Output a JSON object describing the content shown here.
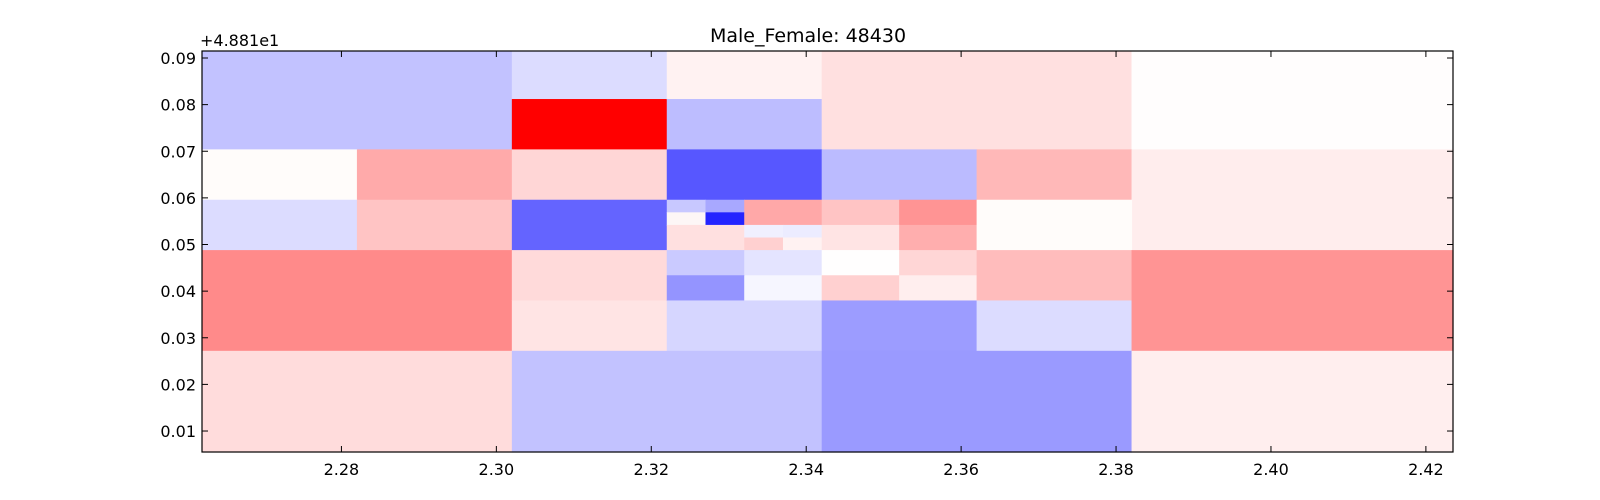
{
  "chart_data": {
    "type": "heatmap",
    "title": "Male_Female: 48430",
    "xlabel": "",
    "ylabel": "",
    "y_offset_label": "+4.881e1",
    "xlim": [
      2.262,
      2.4235
    ],
    "ylim": [
      0.0055,
      0.0915
    ],
    "x_ticks": [
      2.28,
      2.3,
      2.32,
      2.34,
      2.36,
      2.38,
      2.4,
      2.42
    ],
    "x_tick_labels": [
      "2.28",
      "2.30",
      "2.32",
      "2.34",
      "2.36",
      "2.38",
      "2.40",
      "2.42"
    ],
    "y_ticks": [
      0.01,
      0.02,
      0.03,
      0.04,
      0.05,
      0.06,
      0.07,
      0.08,
      0.09
    ],
    "y_tick_labels": [
      "0.01",
      "0.02",
      "0.03",
      "0.04",
      "0.05",
      "0.06",
      "0.07",
      "0.08",
      "0.09"
    ],
    "colormap": "bwr",
    "cells": [
      {
        "x0": 2.262,
        "x1": 2.302,
        "y0": 0.0704,
        "y1": 0.0915,
        "color": "#c2c2ff"
      },
      {
        "x0": 2.302,
        "x1": 2.322,
        "y0": 0.0812,
        "y1": 0.0915,
        "color": "#dcdcff"
      },
      {
        "x0": 2.302,
        "x1": 2.322,
        "y0": 0.0704,
        "y1": 0.0812,
        "color": "#ff0000"
      },
      {
        "x0": 2.322,
        "x1": 2.342,
        "y0": 0.0812,
        "y1": 0.0915,
        "color": "#fff2f2"
      },
      {
        "x0": 2.322,
        "x1": 2.342,
        "y0": 0.0704,
        "y1": 0.0812,
        "color": "#bdbdff"
      },
      {
        "x0": 2.342,
        "x1": 2.382,
        "y0": 0.0704,
        "y1": 0.0915,
        "color": "#ffe0e0"
      },
      {
        "x0": 2.382,
        "x1": 2.4235,
        "y0": 0.0704,
        "y1": 0.0915,
        "color": "#fffdfd"
      },
      {
        "x0": 2.262,
        "x1": 2.282,
        "y0": 0.0596,
        "y1": 0.0704,
        "color": "#fffcfa"
      },
      {
        "x0": 2.282,
        "x1": 2.302,
        "y0": 0.0596,
        "y1": 0.0704,
        "color": "#ffaaaa"
      },
      {
        "x0": 2.302,
        "x1": 2.322,
        "y0": 0.0596,
        "y1": 0.0704,
        "color": "#ffd6d6"
      },
      {
        "x0": 2.322,
        "x1": 2.342,
        "y0": 0.0596,
        "y1": 0.0704,
        "color": "#5757ff"
      },
      {
        "x0": 2.342,
        "x1": 2.362,
        "y0": 0.0596,
        "y1": 0.0704,
        "color": "#bbbbff"
      },
      {
        "x0": 2.362,
        "x1": 2.382,
        "y0": 0.0596,
        "y1": 0.0704,
        "color": "#ffb8b8"
      },
      {
        "x0": 2.382,
        "x1": 2.4235,
        "y0": 0.0488,
        "y1": 0.0704,
        "color": "#ffeded"
      },
      {
        "x0": 2.262,
        "x1": 2.282,
        "y0": 0.0488,
        "y1": 0.0596,
        "color": "#dcdcff"
      },
      {
        "x0": 2.282,
        "x1": 2.302,
        "y0": 0.0488,
        "y1": 0.0596,
        "color": "#ffc4c4"
      },
      {
        "x0": 2.302,
        "x1": 2.322,
        "y0": 0.0488,
        "y1": 0.0596,
        "color": "#6464ff"
      },
      {
        "x0": 2.322,
        "x1": 2.327,
        "y0": 0.0569,
        "y1": 0.0596,
        "color": "#c8c8ff"
      },
      {
        "x0": 2.327,
        "x1": 2.332,
        "y0": 0.0569,
        "y1": 0.0596,
        "color": "#a8a8ff"
      },
      {
        "x0": 2.322,
        "x1": 2.327,
        "y0": 0.0542,
        "y1": 0.0569,
        "color": "#fdf6f6"
      },
      {
        "x0": 2.327,
        "x1": 2.332,
        "y0": 0.0542,
        "y1": 0.0569,
        "color": "#2424ff"
      },
      {
        "x0": 2.332,
        "x1": 2.342,
        "y0": 0.0542,
        "y1": 0.0596,
        "color": "#ffa8a8"
      },
      {
        "x0": 2.322,
        "x1": 2.332,
        "y0": 0.0488,
        "y1": 0.0542,
        "color": "#ffe0e0"
      },
      {
        "x0": 2.332,
        "x1": 2.337,
        "y0": 0.0515,
        "y1": 0.0542,
        "color": "#f0f0ff"
      },
      {
        "x0": 2.337,
        "x1": 2.342,
        "y0": 0.0515,
        "y1": 0.0542,
        "color": "#ececff"
      },
      {
        "x0": 2.332,
        "x1": 2.337,
        "y0": 0.0488,
        "y1": 0.0515,
        "color": "#ffd0d0"
      },
      {
        "x0": 2.337,
        "x1": 2.342,
        "y0": 0.0488,
        "y1": 0.0515,
        "color": "#fff2f2"
      },
      {
        "x0": 2.342,
        "x1": 2.352,
        "y0": 0.0542,
        "y1": 0.0596,
        "color": "#ffc4c4"
      },
      {
        "x0": 2.352,
        "x1": 2.362,
        "y0": 0.0542,
        "y1": 0.0596,
        "color": "#ff9494"
      },
      {
        "x0": 2.342,
        "x1": 2.352,
        "y0": 0.0488,
        "y1": 0.0542,
        "color": "#ffe4e4"
      },
      {
        "x0": 2.352,
        "x1": 2.362,
        "y0": 0.0488,
        "y1": 0.0542,
        "color": "#ffaeae"
      },
      {
        "x0": 2.362,
        "x1": 2.382,
        "y0": 0.0488,
        "y1": 0.0596,
        "color": "#fffcfa"
      },
      {
        "x0": 2.262,
        "x1": 2.302,
        "y0": 0.0272,
        "y1": 0.0488,
        "color": "#ff8a8a"
      },
      {
        "x0": 2.302,
        "x1": 2.322,
        "y0": 0.038,
        "y1": 0.0488,
        "color": "#ffdada"
      },
      {
        "x0": 2.302,
        "x1": 2.322,
        "y0": 0.0272,
        "y1": 0.038,
        "color": "#ffe4e4"
      },
      {
        "x0": 2.322,
        "x1": 2.332,
        "y0": 0.0434,
        "y1": 0.0488,
        "color": "#cacaff"
      },
      {
        "x0": 2.332,
        "x1": 2.342,
        "y0": 0.0434,
        "y1": 0.0488,
        "color": "#e4e4ff"
      },
      {
        "x0": 2.322,
        "x1": 2.332,
        "y0": 0.038,
        "y1": 0.0434,
        "color": "#9494ff"
      },
      {
        "x0": 2.332,
        "x1": 2.342,
        "y0": 0.038,
        "y1": 0.0434,
        "color": "#f6f6ff"
      },
      {
        "x0": 2.342,
        "x1": 2.352,
        "y0": 0.0434,
        "y1": 0.0488,
        "color": "#fffefe"
      },
      {
        "x0": 2.352,
        "x1": 2.362,
        "y0": 0.0434,
        "y1": 0.0488,
        "color": "#ffd6d6"
      },
      {
        "x0": 2.342,
        "x1": 2.352,
        "y0": 0.038,
        "y1": 0.0434,
        "color": "#ffd0d0"
      },
      {
        "x0": 2.352,
        "x1": 2.362,
        "y0": 0.038,
        "y1": 0.0434,
        "color": "#ffeeee"
      },
      {
        "x0": 2.362,
        "x1": 2.382,
        "y0": 0.038,
        "y1": 0.0488,
        "color": "#ffbcbc"
      },
      {
        "x0": 2.322,
        "x1": 2.342,
        "y0": 0.0272,
        "y1": 0.038,
        "color": "#d6d6ff"
      },
      {
        "x0": 2.342,
        "x1": 2.362,
        "y0": 0.0272,
        "y1": 0.038,
        "color": "#9c9cff"
      },
      {
        "x0": 2.362,
        "x1": 2.382,
        "y0": 0.0272,
        "y1": 0.038,
        "color": "#dcdcff"
      },
      {
        "x0": 2.382,
        "x1": 2.4235,
        "y0": 0.0272,
        "y1": 0.0488,
        "color": "#ff9494"
      },
      {
        "x0": 2.262,
        "x1": 2.302,
        "y0": 0.0055,
        "y1": 0.0272,
        "color": "#ffdcdc"
      },
      {
        "x0": 2.302,
        "x1": 2.342,
        "y0": 0.0055,
        "y1": 0.0272,
        "color": "#c2c2ff"
      },
      {
        "x0": 2.342,
        "x1": 2.382,
        "y0": 0.0055,
        "y1": 0.0272,
        "color": "#9a9aff"
      },
      {
        "x0": 2.382,
        "x1": 2.4235,
        "y0": 0.0055,
        "y1": 0.0272,
        "color": "#ffeeee"
      }
    ]
  }
}
